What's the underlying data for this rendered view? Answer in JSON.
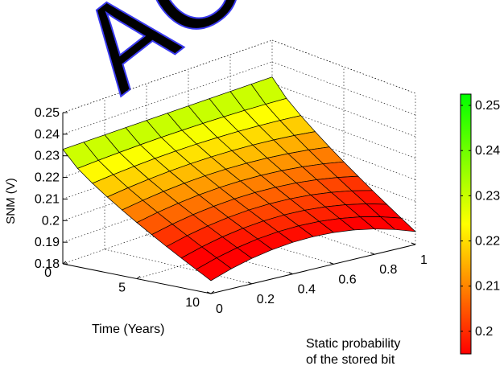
{
  "chart_data": {
    "type": "surface",
    "zlabel": "SNM (V)",
    "xlabel": "Time (Years)",
    "ylabel_lines": [
      "Static probability",
      "of the stored bit"
    ],
    "x_ticks": [
      "0",
      "5",
      "10"
    ],
    "y_ticks": [
      "0",
      "0.2",
      "0.4",
      "0.6",
      "0.8",
      "1"
    ],
    "z_ticks": [
      "0.18",
      "0.19",
      "0.2",
      "0.21",
      "0.22",
      "0.23",
      "0.24",
      "0.25"
    ],
    "xlim": [
      0,
      10
    ],
    "ylim": [
      0,
      1
    ],
    "zlim": [
      0.18,
      0.25
    ],
    "grid": true,
    "colormap": "red-yellow-green",
    "colorbar_ticks": [
      "0.2",
      "0.21",
      "0.22",
      "0.23",
      "0.24",
      "0.25"
    ],
    "colorbar_range": [
      0.195,
      0.2525
    ],
    "surface": {
      "x_time_years": [
        0,
        1,
        2,
        3,
        4,
        5,
        6,
        7,
        8,
        9,
        10
      ],
      "y_probability": [
        0,
        0.1,
        0.2,
        0.3,
        0.4,
        0.5,
        0.6,
        0.7,
        0.8,
        0.9,
        1.0
      ],
      "snm_at_time0": 0.233,
      "snm_at_time10_p0.5": 0.195,
      "snm_at_time10_p0_and_p1": 0.186
    }
  },
  "watermark": "AC",
  "colors": {
    "watermark": "#3a3af0",
    "low": "#ff0000",
    "mid": "#ffff00",
    "high": "#00ff00"
  }
}
